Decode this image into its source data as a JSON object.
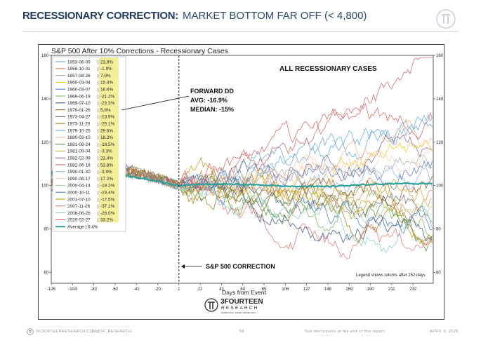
{
  "header": {
    "title_bold": "RECESSIONARY CORRECTION:",
    "title_rest": "MARKET BOTTOM FAR OFF (< 4,800)"
  },
  "chart_data": {
    "type": "line",
    "title": "S&P 500 After 10% Corrections - Recessionary Cases",
    "xlabel": "Days from Event",
    "ylabel": "",
    "xlim": [
      -125,
      252
    ],
    "ylim": [
      55,
      160
    ],
    "x_ticks": [
      "-125",
      "-104",
      "-83",
      "-62",
      "-41",
      "-20",
      "1",
      "22",
      "43",
      "64",
      "85",
      "106",
      "127",
      "148",
      "169",
      "190",
      "211",
      "232"
    ],
    "y_ticks": [
      "60",
      "80",
      "100",
      "120",
      "140",
      "160"
    ],
    "grid": false,
    "legend_position": "top-left",
    "series": [
      {
        "name": "1953-06-09",
        "value": "23.9%",
        "color": "#5b9bd5"
      },
      {
        "name": "1956-10-01",
        "value": "-1.9%",
        "color": "#ed7d31"
      },
      {
        "name": "1957-08-26",
        "value": "7.0%",
        "color": "#a5a5a5"
      },
      {
        "name": "1960-03-04",
        "value": "15.4%",
        "color": "#ffc000"
      },
      {
        "name": "1960-03-07",
        "value": "16.6%",
        "color": "#4472c4"
      },
      {
        "name": "1969-06-19",
        "value": "-21.2%",
        "color": "#70ad47"
      },
      {
        "name": "1969-07-10",
        "value": "-23.3%",
        "color": "#264478"
      },
      {
        "name": "1970-01-26",
        "value": "5.8%",
        "color": "#9e480e"
      },
      {
        "name": "1973-04-27",
        "value": "-13.9%",
        "color": "#636363"
      },
      {
        "name": "1973-11-20",
        "value": "-25.1%",
        "color": "#997300"
      },
      {
        "name": "1979-10-25",
        "value": "29.6%",
        "color": "#4ea6dc"
      },
      {
        "name": "1980-03-10",
        "value": "18.2%",
        "color": "#f4b183"
      },
      {
        "name": "1981-08-24",
        "value": "-18.5%",
        "color": "#548235"
      },
      {
        "name": "1981-09-04",
        "value": "-3.3%",
        "color": "#c9a227"
      },
      {
        "name": "1982-02-09",
        "value": "23.4%",
        "color": "#7f6084"
      },
      {
        "name": "1982-06-18",
        "value": "53.8%",
        "color": "#c55a5a"
      },
      {
        "name": "1990-01-30",
        "value": "-3.9%",
        "color": "#8faadc"
      },
      {
        "name": "1990-08-17",
        "value": "17.2%",
        "color": "#f8cbad"
      },
      {
        "name": "2000-04-14",
        "value": "-18.2%",
        "color": "#a9d18e"
      },
      {
        "name": "2000-10-11",
        "value": "-23.4%",
        "color": "#2e75b6"
      },
      {
        "name": "2001-07-10",
        "value": "-17.5%",
        "color": "#bf9000"
      },
      {
        "name": "2007-11-26",
        "value": "-37.1%",
        "color": "#e06666"
      },
      {
        "name": "2008-06-26",
        "value": "-26.0%",
        "color": "#76c7c0"
      },
      {
        "name": "2020-02-27",
        "value": "33.2%",
        "color": "#d9534f"
      }
    ],
    "average": {
      "name": "Average",
      "value": "0.4%",
      "color": "#2aa198"
    },
    "annotations": {
      "all_cases": "ALL RECESSIONARY CASES",
      "forward_dd": "FORWARD DD",
      "avg": "AVG:  -16.9%",
      "median": "MEDIAN:  -15%",
      "correction": "S&P 500 CORRECTION",
      "note": "Legend shows returns after 252 days"
    },
    "event_day": 1
  },
  "brand": {
    "name": "3FOURTEEN",
    "sub": "RESEARCH",
    "tagline": "MARKET RISK · EXPERT OPPORTUNITY"
  },
  "footer": {
    "site": "3FOURTEENRESEARCH.COM",
    "divider": "|",
    "handle": "@3F_RESEARCH",
    "page": "56",
    "disclaimer": "See disclosures at the end of this report.",
    "date": "APRIL 9, 2025"
  }
}
